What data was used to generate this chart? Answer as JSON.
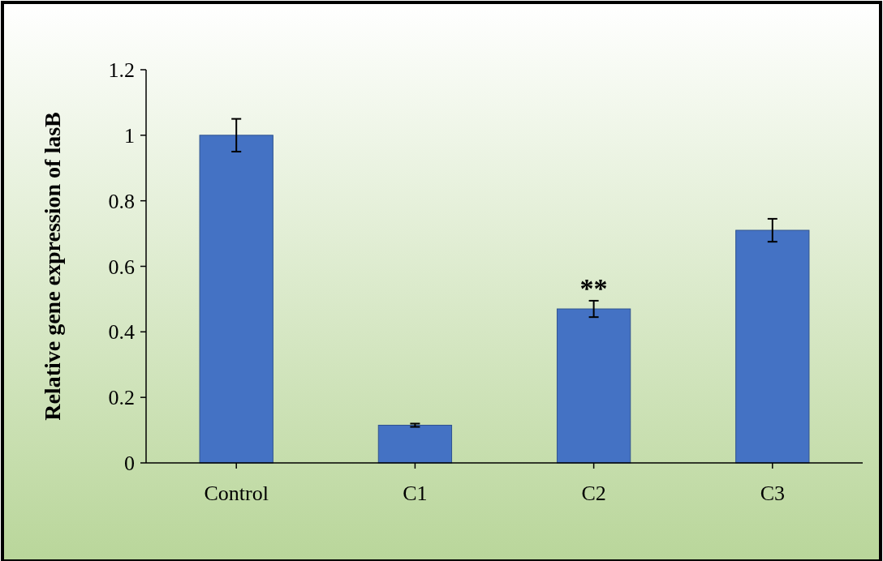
{
  "chart_data": {
    "type": "bar",
    "ylabel": "Relative gene expression of lasB",
    "categories": [
      "Control",
      "C1",
      "C2",
      "C3"
    ],
    "values": [
      1.0,
      0.115,
      0.47,
      0.71
    ],
    "color": "#4472c4",
    "errors": [
      0.05,
      0.005,
      0.025,
      0.035
    ],
    "ylim": [
      0,
      1.2
    ],
    "yticks": [
      0,
      0.2,
      0.4,
      0.6,
      0.8,
      1,
      1.2
    ],
    "grid": false,
    "annotations": [
      {
        "text": "**",
        "x": "C2",
        "y": 0.495
      }
    ]
  }
}
